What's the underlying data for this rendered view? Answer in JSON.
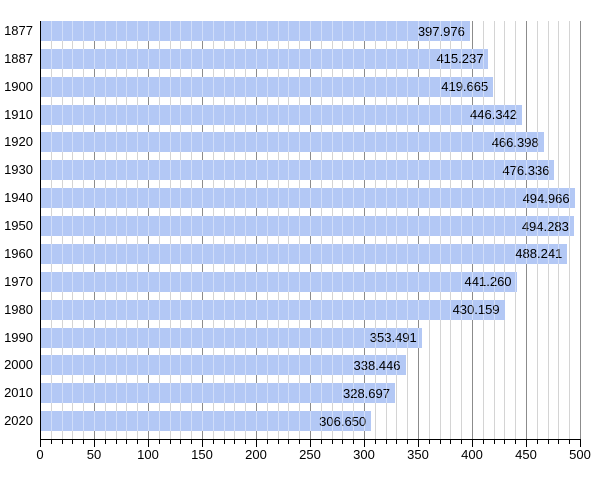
{
  "chart_data": {
    "type": "bar",
    "orientation": "horizontal",
    "title": "",
    "xlabel": "",
    "ylabel": "",
    "xlim": [
      0,
      500
    ],
    "x_major_tick_step": 50,
    "x_minor_tick_step": 10,
    "grid": true,
    "legend_position": "none",
    "x_tick_labels": [
      "0",
      "50",
      "100",
      "150",
      "200",
      "250",
      "300",
      "350",
      "400",
      "450",
      "500"
    ],
    "categories": [
      "1877",
      "1887",
      "1900",
      "1910",
      "1920",
      "1930",
      "1940",
      "1950",
      "1960",
      "1970",
      "1980",
      "1990",
      "2000",
      "2010",
      "2020"
    ],
    "values": [
      397.976,
      415.237,
      419.665,
      446.342,
      466.398,
      476.336,
      494.966,
      494.283,
      488.241,
      441.26,
      430.159,
      353.491,
      338.446,
      328.697,
      306.65
    ],
    "value_labels": [
      "397.976",
      "415.237",
      "419.665",
      "446.342",
      "466.398",
      "476.336",
      "494.966",
      "494.283",
      "488.241",
      "441.260",
      "430.159",
      "353.491",
      "338.446",
      "328.697",
      "306.650"
    ],
    "colors": {
      "bar": "#b3c8f5",
      "grid_minor": "#d4d4d4",
      "grid_major": "#8c8c8c",
      "axis": "#000000",
      "text": "#000000",
      "background": "#ffffff"
    }
  }
}
